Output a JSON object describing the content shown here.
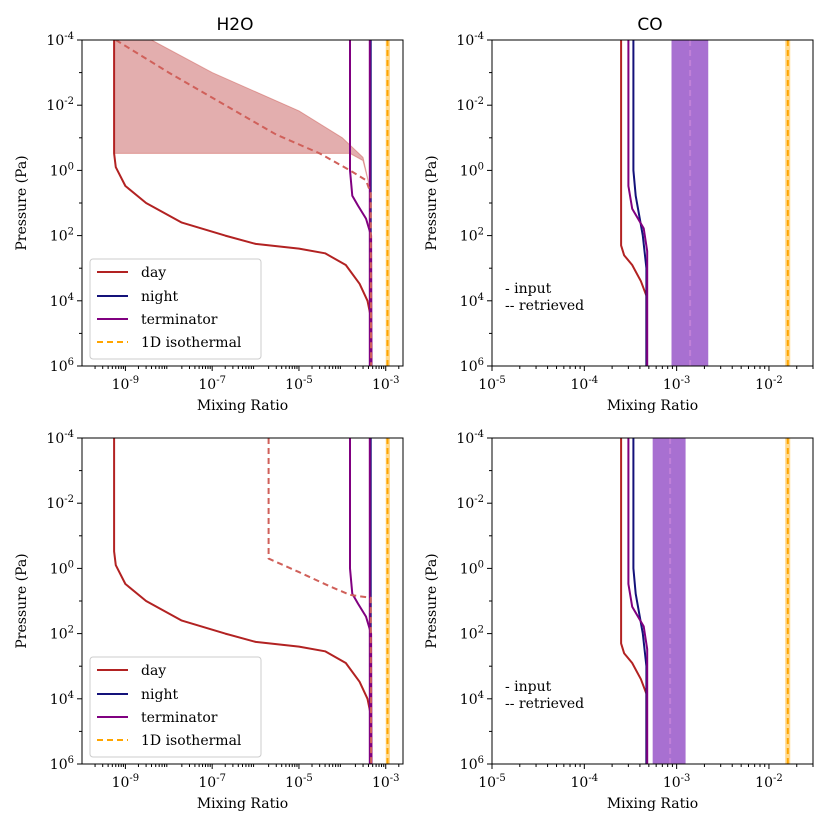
{
  "figure": {
    "title_h2o": "H2O",
    "title_co": "CO",
    "xlabel": "Mixing Ratio",
    "ylabel": "Pressure (Pa)"
  },
  "colors": {
    "day": "#b22222",
    "day_fill": "#dc9a9a",
    "day_dash": "#d0605a",
    "night": "#14127a",
    "terminator": "#800080",
    "isothermal": "#ffa500",
    "iso_band": "#ffcf70",
    "ret_band": "#a368cf",
    "ret_line": "#c080d8"
  },
  "legend": [
    {
      "label": "day",
      "key": "day",
      "style": "solid"
    },
    {
      "label": "night",
      "key": "night",
      "style": "solid"
    },
    {
      "label": "terminator",
      "key": "terminator",
      "style": "solid"
    },
    {
      "label": "1D isothermal",
      "key": "isothermal",
      "style": "dashed"
    }
  ],
  "note": {
    "line1": "-  input",
    "line2": "-- retrieved"
  },
  "chart_data": [
    {
      "type": "line",
      "panel": "h2o-top",
      "title": "H2O",
      "xlabel": "Mixing Ratio",
      "ylabel": "Pressure (Pa)",
      "xscale": "log",
      "yscale": "log",
      "yinverted": true,
      "xlim": [
        1e-10,
        0.0025
      ],
      "ylim": [
        1000000.0,
        0.0001
      ],
      "xticks": [
        1e-09,
        1e-07,
        1e-05,
        0.001
      ],
      "xtick_labels": [
        "10^-9",
        "10^-7",
        "10^-5",
        "10^-3"
      ],
      "yticks": [
        0.0001,
        0.01,
        1,
        100.0,
        10000.0,
        1000000.0
      ],
      "ytick_labels": [
        "10^-4",
        "10^-2",
        "10^0",
        "10^2",
        "10^4",
        "10^6"
      ],
      "series": [
        {
          "name": "day",
          "key": "day",
          "style": "solid",
          "points": [
            [
              5.5e-10,
              0.0001
            ],
            [
              5.5e-10,
              0.3
            ],
            [
              6e-10,
              0.8
            ],
            [
              1e-09,
              3
            ],
            [
              3e-09,
              10
            ],
            [
              2e-08,
              40
            ],
            [
              2e-07,
              100
            ],
            [
              1e-06,
              180
            ],
            [
              1e-05,
              250
            ],
            [
              4e-05,
              350
            ],
            [
              0.00012,
              800
            ],
            [
              0.00025,
              3000
            ],
            [
              0.00038,
              10000.0
            ],
            [
              0.00045,
              30000.0
            ],
            [
              0.00047,
              1000000.0
            ]
          ]
        },
        {
          "name": "night",
          "key": "night",
          "style": "solid",
          "points": [
            [
              0.00045,
              0.0001
            ],
            [
              0.00045,
              1000000.0
            ]
          ]
        },
        {
          "name": "terminator",
          "key": "terminator",
          "style": "solid",
          "points": [
            [
              0.00015,
              0.0001
            ],
            [
              0.00015,
              1
            ],
            [
              0.00017,
              6
            ],
            [
              0.00023,
              12
            ],
            [
              0.00035,
              30
            ],
            [
              0.00046,
              100
            ],
            [
              0.00047,
              1000000.0
            ]
          ]
        },
        {
          "name": "terminator (inner)",
          "key": "terminator",
          "style": "solid",
          "points": [
            [
              0.00043,
              0.0001
            ],
            [
              0.00043,
              1000000.0
            ]
          ]
        },
        {
          "name": "day retrieved",
          "key": "day_dash",
          "style": "dashed",
          "points": [
            [
              6e-10,
              0.0001
            ],
            [
              1e-08,
              0.001
            ],
            [
              2e-07,
              0.01
            ],
            [
              3e-06,
              0.08
            ],
            [
              3e-05,
              0.3
            ],
            [
              0.00015,
              1
            ],
            [
              0.00035,
              2
            ],
            [
              0.00045,
              5
            ],
            [
              0.00046,
              1000000.0
            ]
          ]
        },
        {
          "name": "1D isothermal",
          "key": "isothermal",
          "style": "dashed",
          "points": [
            [
              0.0011,
              0.0001
            ],
            [
              0.0011,
              1000000.0
            ]
          ]
        }
      ],
      "bands": [
        {
          "key": "day_fill",
          "low": [
            [
              5.5e-10,
              0.3
            ],
            [
              2e-05,
              0.3
            ],
            [
              0.00015,
              0.3
            ],
            [
              0.0003,
              0.5
            ],
            [
              0.00042,
              3
            ]
          ],
          "high": [
            [
              5.5e-10,
              0.0001
            ],
            [
              4e-09,
              0.0001
            ],
            [
              1e-07,
              0.001
            ],
            [
              1e-05,
              0.015
            ],
            [
              0.0001,
              0.1
            ],
            [
              0.0003,
              0.4
            ],
            [
              0.00042,
              3
            ]
          ]
        },
        {
          "key": "iso_band",
          "x": [
            0.001,
            0.00125
          ]
        }
      ]
    },
    {
      "type": "line",
      "panel": "co-top",
      "title": "CO",
      "xlabel": "Mixing Ratio",
      "ylabel": "Pressure (Pa)",
      "xscale": "log",
      "yscale": "log",
      "yinverted": true,
      "xlim": [
        1e-05,
        0.03
      ],
      "ylim": [
        1000000.0,
        0.0001
      ],
      "xticks": [
        1e-05,
        0.0001,
        0.001,
        0.01
      ],
      "xtick_labels": [
        "10^-5",
        "10^-4",
        "10^-3",
        "10^-2"
      ],
      "yticks": [
        0.0001,
        0.01,
        1,
        100.0,
        10000.0,
        1000000.0
      ],
      "ytick_labels": [
        "10^-4",
        "10^-2",
        "10^0",
        "10^2",
        "10^4",
        "10^6"
      ],
      "series": [
        {
          "name": "day",
          "key": "day",
          "style": "solid",
          "points": [
            [
              0.00025,
              0.0001
            ],
            [
              0.00025,
              200
            ],
            [
              0.00027,
              400
            ],
            [
              0.00033,
              800
            ],
            [
              0.00041,
              2500
            ],
            [
              0.00047,
              7000
            ],
            [
              0.00047,
              1000000.0
            ]
          ]
        },
        {
          "name": "night",
          "key": "night",
          "style": "solid",
          "points": [
            [
              0.00034,
              0.0001
            ],
            [
              0.00034,
              1
            ],
            [
              0.00036,
              6
            ],
            [
              0.00043,
              100
            ],
            [
              0.00047,
              1000
            ],
            [
              0.00047,
              1000000.0
            ]
          ]
        },
        {
          "name": "terminator",
          "key": "terminator",
          "style": "solid",
          "points": [
            [
              0.0003,
              0.0001
            ],
            [
              0.0003,
              3
            ],
            [
              0.00033,
              15
            ],
            [
              0.00044,
              60
            ],
            [
              0.00048,
              300
            ],
            [
              0.00048,
              1000000.0
            ]
          ]
        },
        {
          "name": "retrieved",
          "key": "ret_line",
          "style": "dashed",
          "points": [
            [
              0.0014,
              0.0001
            ],
            [
              0.0014,
              1000000.0
            ]
          ]
        },
        {
          "name": "1D isothermal",
          "key": "isothermal",
          "style": "dashed",
          "points": [
            [
              0.016,
              0.0001
            ],
            [
              0.016,
              1000000.0
            ]
          ]
        }
      ],
      "bands": [
        {
          "key": "ret_band",
          "x": [
            0.00088,
            0.0022
          ]
        },
        {
          "key": "iso_band",
          "x": [
            0.015,
            0.017
          ]
        }
      ]
    },
    {
      "type": "line",
      "panel": "h2o-bottom",
      "title": "",
      "xlabel": "Mixing Ratio",
      "ylabel": "Pressure (Pa)",
      "xscale": "log",
      "yscale": "log",
      "yinverted": true,
      "xlim": [
        1e-10,
        0.0025
      ],
      "ylim": [
        1000000.0,
        0.0001
      ],
      "xticks": [
        1e-09,
        1e-07,
        1e-05,
        0.001
      ],
      "xtick_labels": [
        "10^-9",
        "10^-7",
        "10^-5",
        "10^-3"
      ],
      "yticks": [
        0.0001,
        0.01,
        1,
        100.0,
        10000.0,
        1000000.0
      ],
      "ytick_labels": [
        "10^-4",
        "10^-2",
        "10^0",
        "10^2",
        "10^4",
        "10^6"
      ],
      "series": [
        {
          "name": "day",
          "key": "day",
          "style": "solid",
          "points": [
            [
              5.5e-10,
              0.0001
            ],
            [
              5.5e-10,
              0.3
            ],
            [
              6e-10,
              0.8
            ],
            [
              1e-09,
              3
            ],
            [
              3e-09,
              10
            ],
            [
              2e-08,
              40
            ],
            [
              2e-07,
              100
            ],
            [
              1e-06,
              180
            ],
            [
              1e-05,
              250
            ],
            [
              4e-05,
              350
            ],
            [
              0.00012,
              800
            ],
            [
              0.00025,
              3000
            ],
            [
              0.00038,
              10000.0
            ],
            [
              0.00045,
              30000.0
            ],
            [
              0.00047,
              1000000.0
            ]
          ]
        },
        {
          "name": "night",
          "key": "night",
          "style": "solid",
          "points": [
            [
              0.00045,
              0.0001
            ],
            [
              0.00045,
              1000000.0
            ]
          ]
        },
        {
          "name": "terminator",
          "key": "terminator",
          "style": "solid",
          "points": [
            [
              0.00015,
              0.0001
            ],
            [
              0.00015,
              1
            ],
            [
              0.00017,
              6
            ],
            [
              0.00023,
              12
            ],
            [
              0.00035,
              30
            ],
            [
              0.00046,
              100
            ],
            [
              0.00047,
              1000000.0
            ]
          ]
        },
        {
          "name": "terminator (inner)",
          "key": "terminator",
          "style": "solid",
          "points": [
            [
              0.00043,
              0.0001
            ],
            [
              0.00043,
              1000000.0
            ]
          ]
        },
        {
          "name": "day retrieved",
          "key": "day_dash",
          "style": "dashed",
          "points": [
            [
              2e-06,
              0.0001
            ],
            [
              2e-06,
              0.5
            ],
            [
              1e-05,
              1.3
            ],
            [
              5e-05,
              3.5
            ],
            [
              0.00015,
              6.5
            ],
            [
              0.00045,
              8
            ],
            [
              0.00046,
              1000000.0
            ]
          ]
        },
        {
          "name": "1D isothermal",
          "key": "isothermal",
          "style": "dashed",
          "points": [
            [
              0.0011,
              0.0001
            ],
            [
              0.0011,
              1000000.0
            ]
          ]
        }
      ],
      "bands": [
        {
          "key": "iso_band",
          "x": [
            0.001,
            0.00125
          ]
        }
      ]
    },
    {
      "type": "line",
      "panel": "co-bottom",
      "title": "",
      "xlabel": "Mixing Ratio",
      "ylabel": "Pressure (Pa)",
      "xscale": "log",
      "yscale": "log",
      "yinverted": true,
      "xlim": [
        1e-05,
        0.03
      ],
      "ylim": [
        1000000.0,
        0.0001
      ],
      "xticks": [
        1e-05,
        0.0001,
        0.001,
        0.01
      ],
      "xtick_labels": [
        "10^-5",
        "10^-4",
        "10^-3",
        "10^-2"
      ],
      "yticks": [
        0.0001,
        0.01,
        1,
        100.0,
        10000.0,
        1000000.0
      ],
      "ytick_labels": [
        "10^-4",
        "10^-2",
        "10^0",
        "10^2",
        "10^4",
        "10^6"
      ],
      "series": [
        {
          "name": "day",
          "key": "day",
          "style": "solid",
          "points": [
            [
              0.00025,
              0.0001
            ],
            [
              0.00025,
              200
            ],
            [
              0.00027,
              400
            ],
            [
              0.00033,
              800
            ],
            [
              0.00041,
              2500
            ],
            [
              0.00047,
              7000
            ],
            [
              0.00047,
              1000000.0
            ]
          ]
        },
        {
          "name": "night",
          "key": "night",
          "style": "solid",
          "points": [
            [
              0.00034,
              0.0001
            ],
            [
              0.00034,
              1
            ],
            [
              0.00036,
              6
            ],
            [
              0.00043,
              100
            ],
            [
              0.00047,
              1000
            ],
            [
              0.00047,
              1000000.0
            ]
          ]
        },
        {
          "name": "terminator",
          "key": "terminator",
          "style": "solid",
          "points": [
            [
              0.0003,
              0.0001
            ],
            [
              0.0003,
              3
            ],
            [
              0.00033,
              15
            ],
            [
              0.00044,
              60
            ],
            [
              0.00048,
              300
            ],
            [
              0.00048,
              1000000.0
            ]
          ]
        },
        {
          "name": "retrieved",
          "key": "ret_line",
          "style": "dashed",
          "points": [
            [
              0.00085,
              0.0001
            ],
            [
              0.00085,
              1000000.0
            ]
          ]
        },
        {
          "name": "1D isothermal",
          "key": "isothermal",
          "style": "dashed",
          "points": [
            [
              0.016,
              0.0001
            ],
            [
              0.016,
              1000000.0
            ]
          ]
        }
      ],
      "bands": [
        {
          "key": "ret_band",
          "x": [
            0.00055,
            0.00125
          ]
        },
        {
          "key": "iso_band",
          "x": [
            0.015,
            0.017
          ]
        }
      ]
    }
  ]
}
